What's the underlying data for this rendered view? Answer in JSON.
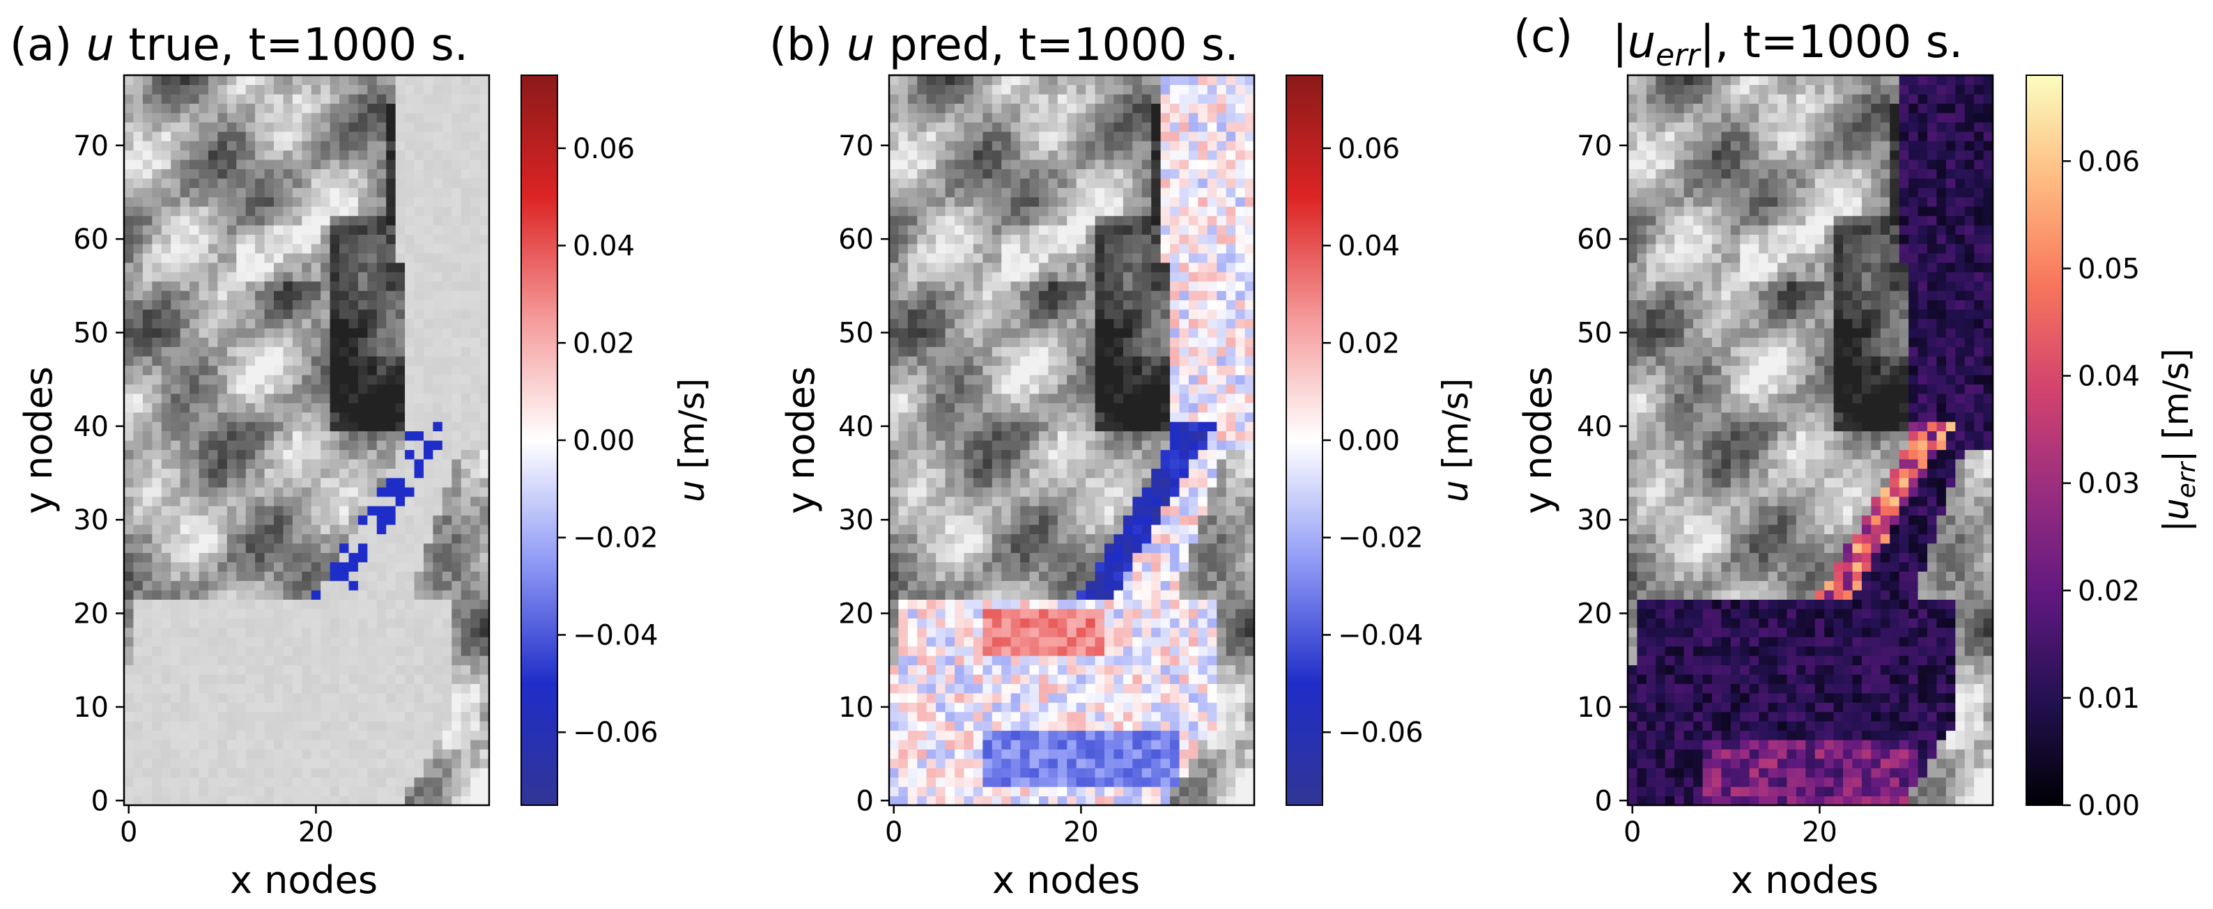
{
  "colors": {
    "diverging": [
      "#313695",
      "#1f2dc8",
      "#8f9af5",
      "#ffffff",
      "#f59a9a",
      "#dd2424",
      "#8b1a1a"
    ],
    "magma": [
      "#000004",
      "#231151",
      "#5f187f",
      "#982d80",
      "#d3436e",
      "#f8765c",
      "#febb81",
      "#fcfdbf"
    ],
    "background_gray": [
      "#141414",
      "#f5f5f5"
    ]
  },
  "chart_data": [
    {
      "type": "heatmap",
      "panel_label": "(a)",
      "title": {
        "var": "u",
        "rest": " true, t=1000 s."
      },
      "xlabel": "x nodes",
      "ylabel": "y nodes",
      "x_ticks": [
        "0",
        "20"
      ],
      "y_ticks": [
        "0",
        "10",
        "20",
        "30",
        "40",
        "50",
        "60",
        "70"
      ],
      "xlim": [
        -0.5,
        38.5
      ],
      "ylim": [
        -0.5,
        77.5
      ],
      "grid": false,
      "colorbar": {
        "colormap": "seismic",
        "range": [
          -0.075,
          0.075
        ],
        "ticks": [
          "0.06",
          "0.04",
          "0.02",
          "0.00",
          "−0.02",
          "−0.04",
          "−0.06"
        ],
        "tick_values": [
          0.06,
          0.04,
          0.02,
          0.0,
          -0.02,
          -0.04,
          -0.06
        ],
        "label": {
          "var": "u",
          "rest": " [m/s]"
        }
      },
      "field_summary": "near-zero velocity over the flooded channel; a few negative cells at the channel neck near x≈22–25, y≈26–30"
    },
    {
      "type": "heatmap",
      "panel_label": "(b)",
      "title": {
        "var": "u",
        "rest": " pred, t=1000 s."
      },
      "xlabel": "x nodes",
      "ylabel": "y nodes",
      "x_ticks": [
        "0",
        "20"
      ],
      "y_ticks": [
        "0",
        "10",
        "20",
        "30",
        "40",
        "50",
        "60",
        "70"
      ],
      "xlim": [
        -0.5,
        38.5
      ],
      "ylim": [
        -0.5,
        77.5
      ],
      "grid": false,
      "colorbar": {
        "colormap": "seismic",
        "range": [
          -0.075,
          0.075
        ],
        "ticks": [
          "0.06",
          "0.04",
          "0.02",
          "0.00",
          "−0.02",
          "−0.04",
          "−0.06"
        ],
        "tick_values": [
          0.06,
          0.04,
          0.02,
          0.0,
          -0.02,
          -0.04,
          -0.06
        ],
        "label": {
          "var": "u",
          "rest": " [m/s]"
        }
      },
      "field_summary": "small positive/negative noise over the flood area; strong negative band along the channel neck (x≈20–32, y≈22–40); negative rim at the bottom of the lower lobe"
    },
    {
      "type": "heatmap",
      "panel_label": "(c)",
      "title": {
        "var": "u",
        "sub": "err",
        "rest": ", t=1000 s."
      },
      "xlabel": "x nodes",
      "ylabel": "y nodes",
      "x_ticks": [
        "0",
        "20"
      ],
      "y_ticks": [
        "0",
        "10",
        "20",
        "30",
        "40",
        "50",
        "60",
        "70"
      ],
      "xlim": [
        -0.5,
        38.5
      ],
      "ylim": [
        -0.5,
        77.5
      ],
      "grid": false,
      "colorbar": {
        "colormap": "magma",
        "range": [
          0.0,
          0.068
        ],
        "ticks": [
          "0.06",
          "0.05",
          "0.04",
          "0.03",
          "0.02",
          "0.01",
          "0.00"
        ],
        "tick_values": [
          0.06,
          0.05,
          0.04,
          0.03,
          0.02,
          0.01,
          0.0
        ],
        "label": {
          "var": "u",
          "sub": "err",
          "rest": " [m/s]"
        }
      },
      "field_summary": "mostly dark (low error) over the flood area; highest errors (~0.04–0.06) along the channel neck and lower-lobe edges"
    }
  ]
}
